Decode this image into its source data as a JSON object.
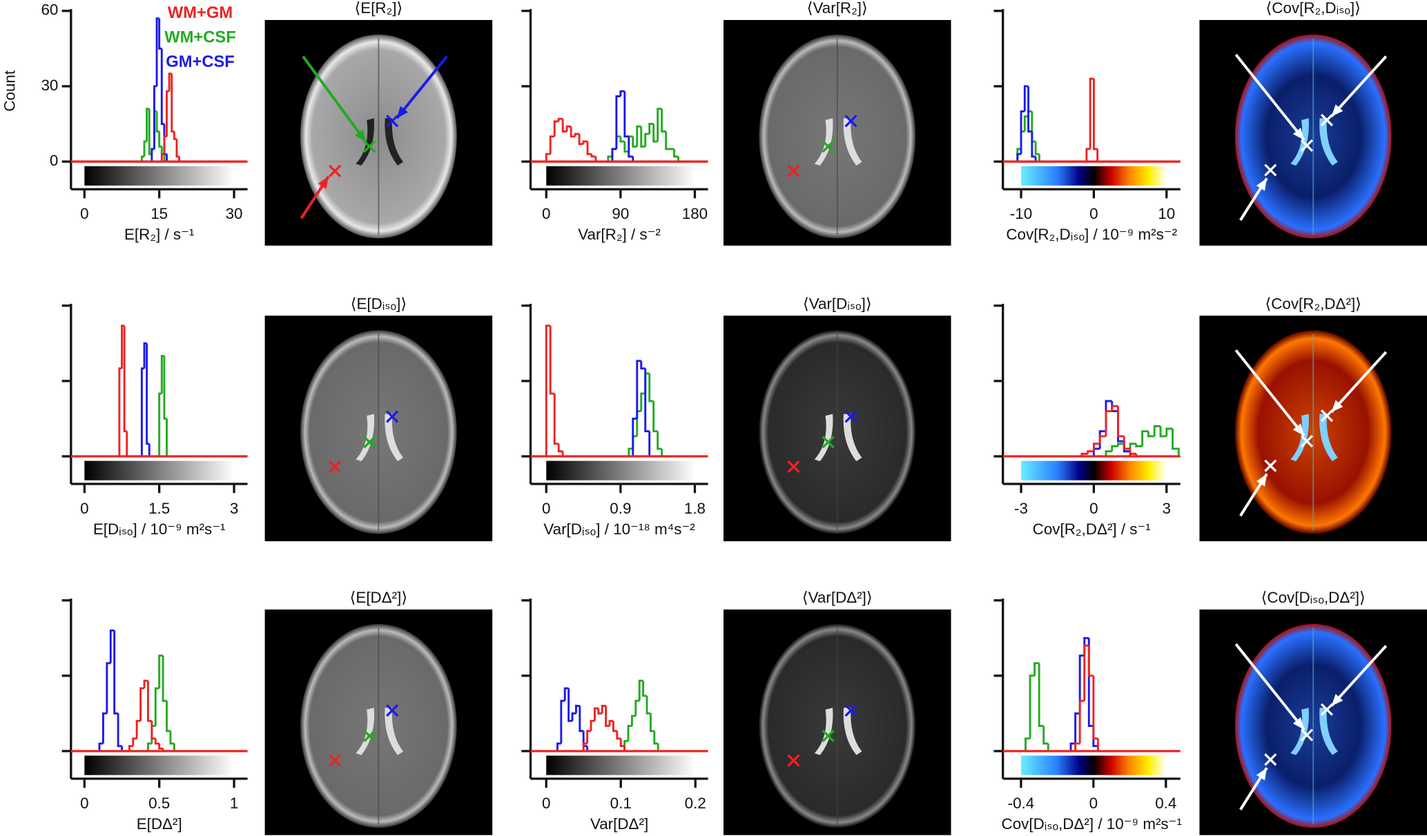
{
  "chart_data": [
    {
      "type": "histogram",
      "ylabel": "Count",
      "xlabel": "E[R₂] / s⁻¹",
      "legend": "upper right",
      "ytick_labels": true,
      "colorbar": "gray",
      "xlim": [
        -2.7,
        32.7
      ],
      "xticks": [
        0,
        15,
        30
      ],
      "ylim": [
        -11,
        60
      ],
      "yticks": [
        0,
        30,
        60
      ],
      "bins": [
        10,
        10.5,
        11,
        11.5,
        12,
        12.5,
        13,
        13.5,
        14,
        14.5,
        15,
        15.5,
        16,
        16.5,
        17,
        17.5,
        18,
        18.5,
        19,
        19.5,
        20
      ],
      "series": [
        {
          "name": "WM+GM",
          "color": "#ee2222",
          "values": [
            0,
            0,
            0,
            0,
            0,
            0,
            0,
            0,
            0,
            0,
            0,
            3,
            10,
            28,
            35,
            12,
            9,
            2,
            0,
            0
          ]
        },
        {
          "name": "WM+CSF",
          "color": "#22aa22",
          "values": [
            0,
            0,
            0,
            2,
            8,
            21,
            3,
            5,
            20,
            12,
            6,
            3,
            0,
            0,
            0,
            0,
            0,
            0,
            0,
            0
          ]
        },
        {
          "name": "GM+CSF",
          "color": "#1a1aee",
          "values": [
            0,
            0,
            0,
            0,
            0,
            0,
            0,
            5,
            30,
            57,
            45,
            15,
            3,
            0,
            0,
            0,
            0,
            0,
            0,
            0
          ]
        }
      ]
    },
    {
      "type": "histogram",
      "xlabel": "Var[R₂] / s⁻²",
      "ytick_labels": false,
      "colorbar": "gray",
      "xlim": [
        -19,
        196
      ],
      "xticks": [
        0,
        90,
        180
      ],
      "ylim": [
        -11,
        60
      ],
      "yticks": [
        0,
        30,
        60
      ],
      "bins": [
        0,
        5,
        10,
        15,
        20,
        25,
        30,
        35,
        40,
        45,
        50,
        55,
        60,
        65,
        70,
        75,
        80,
        85,
        90,
        95,
        100,
        105,
        110,
        115,
        120,
        125,
        130,
        135,
        140,
        145,
        150,
        155,
        160,
        165,
        170
      ],
      "series": [
        {
          "color": "#ee2222",
          "values": [
            3,
            10,
            16,
            17,
            12,
            14,
            10,
            11,
            7,
            8,
            3,
            2,
            0,
            0,
            0,
            0,
            0,
            0,
            0,
            0,
            0,
            0,
            0,
            0,
            0,
            0,
            0,
            0,
            0,
            0,
            0,
            0,
            0,
            0
          ]
        },
        {
          "color": "#22aa22",
          "values": [
            0,
            0,
            0,
            0,
            0,
            0,
            0,
            0,
            0,
            0,
            0,
            0,
            0,
            0,
            0,
            2,
            5,
            10,
            8,
            4,
            10,
            6,
            14,
            6,
            11,
            15,
            8,
            21,
            12,
            5,
            5,
            2,
            0,
            0
          ]
        },
        {
          "color": "#1a1aee",
          "values": [
            0,
            0,
            0,
            0,
            0,
            0,
            0,
            0,
            0,
            0,
            0,
            0,
            0,
            0,
            0,
            0,
            5,
            26,
            28,
            10,
            2,
            0,
            0,
            0,
            0,
            0,
            0,
            0,
            0,
            0,
            0,
            0,
            0,
            0
          ]
        }
      ]
    },
    {
      "type": "histogram",
      "xlabel": "Cov[R₂,Dᵢₛₒ] / 10⁻⁹ m²s⁻²",
      "ytick_labels": false,
      "colorbar": "diverging",
      "xlim": [
        -12.5,
        11.9
      ],
      "xticks": [
        -10,
        0,
        10
      ],
      "ylim": [
        -11,
        60
      ],
      "yticks": [
        0,
        30,
        60
      ],
      "bins": [
        -11,
        -10.5,
        -10,
        -9.5,
        -9,
        -8.5,
        -8,
        -7.5,
        -7,
        -6.5,
        -6,
        -5.5,
        -5,
        -4.5,
        -4,
        -3.5,
        -3,
        -2.5,
        -2,
        -1.5,
        -1,
        -0.5,
        0,
        0.5,
        1
      ],
      "series": [
        {
          "color": "#ee2222",
          "values": [
            0,
            0,
            0,
            0,
            0,
            0,
            0,
            0,
            0,
            0,
            0,
            0,
            0,
            0,
            0,
            0,
            0,
            0,
            0,
            0,
            5,
            33,
            5,
            0
          ]
        },
        {
          "color": "#22aa22",
          "values": [
            0,
            5,
            12,
            18,
            20,
            8,
            3,
            0,
            0,
            0,
            0,
            0,
            0,
            0,
            0,
            0,
            0,
            0,
            0,
            0,
            0,
            0,
            0,
            0
          ]
        },
        {
          "color": "#1a1aee",
          "values": [
            0,
            3,
            20,
            30,
            12,
            2,
            0,
            0,
            0,
            0,
            0,
            0,
            0,
            0,
            0,
            0,
            0,
            0,
            0,
            0,
            0,
            0,
            0,
            0
          ]
        }
      ]
    },
    {
      "type": "histogram",
      "xlabel": "E[Dᵢₛₒ] / 10⁻⁹ m²s⁻¹",
      "ytick_labels": false,
      "colorbar": "gray",
      "xlim": [
        -0.27,
        3.27
      ],
      "xticks": [
        0,
        1.5,
        3
      ],
      "ylim": [
        -11,
        60
      ],
      "yticks": [
        0,
        30,
        60
      ],
      "bins": [
        0.6,
        0.65,
        0.7,
        0.75,
        0.8,
        0.85,
        0.9,
        0.95,
        1,
        1.05,
        1.1,
        1.15,
        1.2,
        1.25,
        1.3,
        1.35,
        1.4,
        1.45,
        1.5,
        1.55,
        1.6,
        1.65,
        1.7,
        1.75,
        1.8
      ],
      "series": [
        {
          "color": "#ee2222",
          "values": [
            0,
            0,
            35,
            52,
            10,
            0,
            0,
            0,
            0,
            0,
            0,
            0,
            0,
            0,
            0,
            0,
            0,
            0,
            0,
            0,
            0,
            0,
            0,
            0
          ]
        },
        {
          "color": "#22aa22",
          "values": [
            0,
            0,
            0,
            0,
            0,
            0,
            0,
            0,
            0,
            0,
            0,
            0,
            0,
            0,
            0,
            0,
            0,
            0,
            25,
            40,
            15,
            0,
            0,
            0
          ]
        },
        {
          "color": "#1a1aee",
          "values": [
            0,
            0,
            0,
            0,
            0,
            0,
            0,
            0,
            0,
            0,
            0,
            35,
            45,
            5,
            0,
            0,
            0,
            0,
            0,
            0,
            0,
            0,
            0,
            0
          ]
        }
      ]
    },
    {
      "type": "histogram",
      "xlabel": "Var[Dᵢₛₒ] / 10⁻¹⁸ m⁴s⁻²",
      "ytick_labels": false,
      "colorbar": "gray",
      "xlim": [
        -0.19,
        1.96
      ],
      "xticks": [
        0,
        0.9,
        1.8
      ],
      "ylim": [
        -11,
        60
      ],
      "yticks": [
        0,
        30,
        60
      ],
      "bins": [
        0,
        0.05,
        0.1,
        0.15,
        0.2,
        0.25,
        0.3,
        0.35,
        0.4,
        0.45,
        0.5,
        0.55,
        0.6,
        0.65,
        0.7,
        0.75,
        0.8,
        0.85,
        0.9,
        0.95,
        1,
        1.05,
        1.1,
        1.15,
        1.2,
        1.25,
        1.3,
        1.35,
        1.4,
        1.45,
        1.5
      ],
      "series": [
        {
          "color": "#ee2222",
          "values": [
            52,
            25,
            5,
            2,
            0,
            0,
            0,
            0,
            0,
            0,
            0,
            0,
            0,
            0,
            0,
            0,
            0,
            0,
            0,
            0,
            0,
            0,
            0,
            0,
            0,
            0,
            0,
            0,
            0,
            0
          ]
        },
        {
          "color": "#22aa22",
          "values": [
            0,
            0,
            0,
            0,
            0,
            0,
            0,
            0,
            0,
            0,
            0,
            0,
            0,
            0,
            0,
            0,
            0,
            0,
            0,
            0,
            3,
            8,
            18,
            25,
            33,
            22,
            10,
            3,
            0,
            0
          ]
        },
        {
          "color": "#1a1aee",
          "values": [
            0,
            0,
            0,
            0,
            0,
            0,
            0,
            0,
            0,
            0,
            0,
            0,
            0,
            0,
            0,
            0,
            0,
            0,
            0,
            0,
            0,
            15,
            38,
            35,
            10,
            0,
            0,
            0,
            0,
            0
          ]
        }
      ]
    },
    {
      "type": "histogram",
      "xlabel": "Cov[R₂,DΔ²] / s⁻¹",
      "ytick_labels": false,
      "colorbar": "diverging",
      "xlim": [
        -3.75,
        3.57
      ],
      "xticks": [
        -3,
        0,
        3
      ],
      "ylim": [
        -11,
        60
      ],
      "yticks": [
        0,
        30,
        60
      ],
      "bins": [
        -0.5,
        -0.25,
        0,
        0.25,
        0.5,
        0.75,
        1,
        1.25,
        1.5,
        1.75,
        2,
        2.25,
        2.5,
        2.75,
        3,
        3.25,
        3.5
      ],
      "series": [
        {
          "color": "#ee2222",
          "values": [
            1,
            2,
            5,
            8,
            18,
            20,
            8,
            3,
            1,
            0,
            0,
            0,
            0,
            0,
            0,
            0
          ]
        },
        {
          "color": "#22aa22",
          "values": [
            0,
            0,
            0,
            0,
            2,
            4,
            5,
            3,
            5,
            4,
            10,
            8,
            12,
            8,
            11,
            3
          ]
        },
        {
          "color": "#1a1aee",
          "values": [
            0,
            0,
            3,
            10,
            22,
            18,
            6,
            2,
            0,
            0,
            0,
            0,
            0,
            0,
            0,
            0
          ]
        }
      ]
    },
    {
      "type": "histogram",
      "xlabel": "E[DΔ²]",
      "ytick_labels": false,
      "colorbar": "gray",
      "xlim": [
        -0.09,
        1.09
      ],
      "xticks": [
        0,
        0.5,
        1
      ],
      "ylim": [
        -11,
        60
      ],
      "yticks": [
        0,
        30,
        60
      ],
      "bins": [
        0.05,
        0.075,
        0.1,
        0.125,
        0.15,
        0.175,
        0.2,
        0.225,
        0.25,
        0.275,
        0.3,
        0.325,
        0.35,
        0.375,
        0.4,
        0.425,
        0.45,
        0.475,
        0.5,
        0.525,
        0.55,
        0.575,
        0.6,
        0.625,
        0.65
      ],
      "series": [
        {
          "color": "#ee2222",
          "values": [
            0,
            0,
            0,
            0,
            0,
            0,
            0,
            0,
            0,
            0,
            2,
            5,
            12,
            25,
            28,
            12,
            5,
            3,
            1,
            0,
            0,
            0,
            0,
            0
          ]
        },
        {
          "color": "#22aa22",
          "values": [
            0,
            0,
            0,
            0,
            0,
            0,
            0,
            0,
            0,
            0,
            0,
            0,
            0,
            0,
            0,
            3,
            10,
            25,
            38,
            20,
            8,
            3,
            0,
            0
          ]
        },
        {
          "color": "#1a1aee",
          "values": [
            0,
            0,
            3,
            15,
            35,
            48,
            15,
            2,
            0,
            0,
            0,
            0,
            0,
            0,
            0,
            0,
            0,
            0,
            0,
            0,
            0,
            0,
            0,
            0
          ]
        }
      ]
    },
    {
      "type": "histogram",
      "xlabel": "Var[DΔ²]",
      "ytick_labels": false,
      "colorbar": "gray",
      "xlim": [
        -0.021,
        0.217
      ],
      "xticks": [
        0,
        0.1,
        0.2
      ],
      "ylim": [
        -11,
        60
      ],
      "yticks": [
        0,
        30,
        60
      ],
      "bins": [
        0.01,
        0.015,
        0.02,
        0.025,
        0.03,
        0.035,
        0.04,
        0.045,
        0.05,
        0.055,
        0.06,
        0.065,
        0.07,
        0.075,
        0.08,
        0.085,
        0.09,
        0.095,
        0.1,
        0.105,
        0.11,
        0.115,
        0.12,
        0.125,
        0.13,
        0.135,
        0.14,
        0.145,
        0.15,
        0.155,
        0.16
      ],
      "series": [
        {
          "color": "#ee2222",
          "values": [
            0,
            0,
            0,
            0,
            0,
            0,
            0,
            0,
            3,
            8,
            12,
            17,
            15,
            18,
            10,
            12,
            8,
            5,
            2,
            0,
            0,
            0,
            0,
            0,
            0,
            0,
            0,
            0,
            0,
            0
          ]
        },
        {
          "color": "#22aa22",
          "values": [
            0,
            0,
            0,
            0,
            0,
            0,
            0,
            0,
            0,
            0,
            0,
            0,
            0,
            0,
            0,
            0,
            0,
            0,
            0,
            4,
            10,
            14,
            20,
            28,
            22,
            15,
            8,
            3,
            0,
            0
          ]
        },
        {
          "color": "#1a1aee",
          "values": [
            0,
            3,
            20,
            25,
            12,
            15,
            18,
            8,
            2,
            0,
            0,
            0,
            0,
            0,
            0,
            0,
            0,
            0,
            0,
            0,
            0,
            0,
            0,
            0,
            0,
            0,
            0,
            0,
            0,
            0
          ]
        }
      ]
    },
    {
      "type": "histogram",
      "xlabel": "Cov[Dᵢₛₒ,DΔ²] / 10⁻⁹ m²s⁻¹",
      "ytick_labels": false,
      "colorbar": "diverging",
      "xlim": [
        -0.5,
        0.48
      ],
      "xticks": [
        -0.4,
        0,
        0.4
      ],
      "ylim": [
        -11,
        60
      ],
      "yticks": [
        0,
        30,
        60
      ],
      "bins": [
        -0.4,
        -0.375,
        -0.35,
        -0.325,
        -0.3,
        -0.275,
        -0.25,
        -0.225,
        -0.2,
        -0.175,
        -0.15,
        -0.125,
        -0.1,
        -0.075,
        -0.05,
        -0.025,
        0,
        0.025,
        0.05
      ],
      "series": [
        {
          "color": "#ee2222",
          "values": [
            0,
            0,
            0,
            0,
            0,
            0,
            0,
            0,
            0,
            0,
            0,
            0,
            3,
            20,
            42,
            30,
            5,
            0
          ]
        },
        {
          "color": "#22aa22",
          "values": [
            0,
            5,
            30,
            35,
            10,
            3,
            0,
            0,
            0,
            0,
            0,
            0,
            0,
            0,
            0,
            0,
            0,
            0
          ]
        },
        {
          "color": "#1a1aee",
          "values": [
            0,
            0,
            0,
            0,
            0,
            0,
            0,
            0,
            0,
            0,
            0,
            3,
            15,
            38,
            45,
            10,
            2,
            0
          ]
        }
      ]
    }
  ],
  "images": [
    {
      "title": "⟨E[R₂]⟩"
    },
    {
      "title": "⟨Var[R₂]⟩"
    },
    {
      "title": "⟨Cov[R₂,Dᵢₛₒ]⟩"
    },
    {
      "title": "⟨E[Dᵢₛₒ]⟩"
    },
    {
      "title": "⟨Var[Dᵢₛₒ]⟩"
    },
    {
      "title": "⟨Cov[R₂,DΔ²]⟩"
    },
    {
      "title": "⟨E[DΔ²]⟩"
    },
    {
      "title": "⟨Var[DΔ²]⟩"
    },
    {
      "title": "⟨Cov[Dᵢₛₒ,DΔ²]⟩"
    }
  ]
}
